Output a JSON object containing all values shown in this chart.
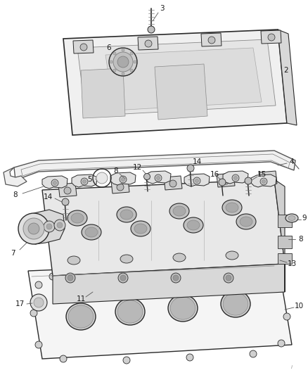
{
  "bg_color": "#ffffff",
  "line_color": "#2a2a2a",
  "fig_width": 4.39,
  "fig_height": 5.33,
  "dpi": 100,
  "font_size": 7.5,
  "label_color": "#1a1a1a",
  "leader_color": "#555555"
}
